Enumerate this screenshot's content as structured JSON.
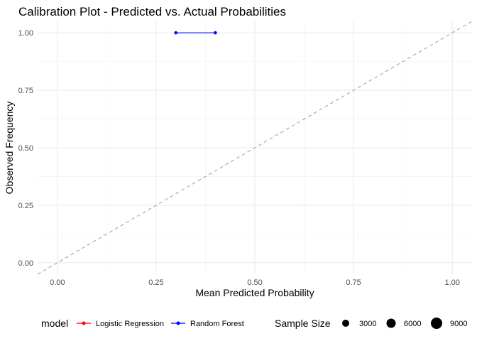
{
  "chart_data": {
    "type": "line",
    "title": "Calibration Plot - Predicted vs. Actual Probabilities",
    "xlabel": "Mean Predicted Probability",
    "ylabel": "Observed Frequency",
    "xlim": [
      -0.05,
      1.05
    ],
    "ylim": [
      -0.05,
      1.05
    ],
    "x_ticks": [
      0.0,
      0.25,
      0.5,
      0.75,
      1.0
    ],
    "y_ticks": [
      0.0,
      0.25,
      0.5,
      0.75,
      1.0
    ],
    "x_tick_labels": [
      "0.00",
      "0.25",
      "0.50",
      "0.75",
      "1.00"
    ],
    "y_tick_labels": [
      "0.00",
      "0.25",
      "0.50",
      "0.75",
      "1.00"
    ],
    "grid": true,
    "reference_line": {
      "style": "dashed",
      "color": "#a6a6a6",
      "slope": 1,
      "intercept": 0
    },
    "series": [
      {
        "name": "Logistic Regression",
        "color": "#ff0000",
        "points": []
      },
      {
        "name": "Random Forest",
        "color": "#0000ff",
        "points": [
          {
            "x": 0.3,
            "y": 1.0
          },
          {
            "x": 0.4,
            "y": 1.0
          }
        ]
      }
    ],
    "legend": {
      "placement": "bottom",
      "model_title": "model",
      "size_title": "Sample Size",
      "size_values": [
        "3000",
        "6000",
        "9000"
      ]
    }
  }
}
